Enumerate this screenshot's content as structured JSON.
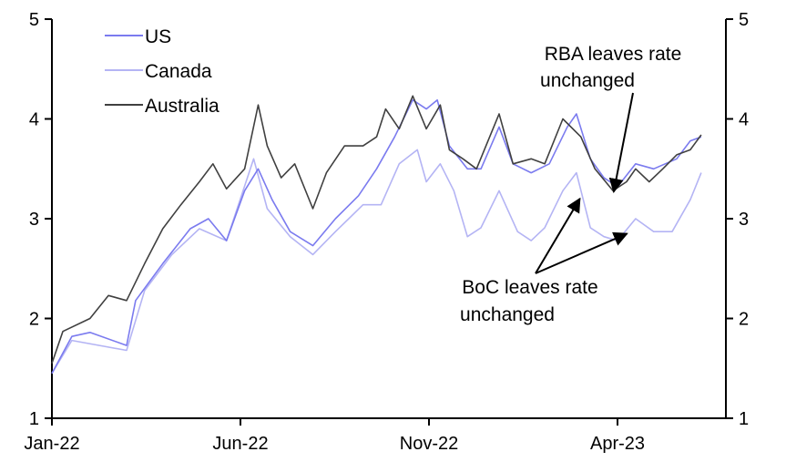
{
  "chart_data": {
    "type": "line",
    "title": "",
    "xlabel": "",
    "ylabel": "",
    "x_unit": "months since Jan-22",
    "xlim": [
      0,
      18.5
    ],
    "ylim": [
      1,
      5
    ],
    "yticks": [
      1,
      2,
      3,
      4,
      5
    ],
    "xticks": [
      {
        "pos": 0,
        "label": "Jan-22"
      },
      {
        "pos": 5,
        "label": "Jun-22"
      },
      {
        "pos": 10,
        "label": "Nov-22"
      },
      {
        "pos": 15,
        "label": "Apr-23"
      }
    ],
    "grid": false,
    "legend_position": "top-left",
    "series": [
      {
        "name": "US",
        "color": "#7b7bef",
        "x": [
          0,
          0.53,
          1.01,
          1.98,
          2.22,
          2.94,
          3.67,
          4.15,
          4.63,
          5.11,
          5.47,
          5.84,
          6.32,
          6.92,
          7.52,
          8.13,
          8.61,
          9.09,
          9.57,
          9.93,
          10.22,
          10.54,
          11.02,
          11.38,
          11.86,
          12.23,
          12.71,
          13.19,
          13.67,
          13.91,
          14.28,
          14.64,
          15.0,
          15.48,
          15.96,
          16.57,
          16.93,
          17.22
        ],
        "y": [
          1.45,
          1.82,
          1.86,
          1.73,
          2.18,
          2.55,
          2.9,
          3.0,
          2.78,
          3.28,
          3.5,
          3.19,
          2.87,
          2.73,
          3.0,
          3.23,
          3.5,
          3.82,
          4.19,
          4.1,
          4.19,
          3.73,
          3.5,
          3.5,
          3.92,
          3.55,
          3.46,
          3.55,
          3.92,
          4.05,
          3.6,
          3.41,
          3.32,
          3.55,
          3.5,
          3.6,
          3.78,
          3.82
        ]
      },
      {
        "name": "Canada",
        "color": "#b4b4f4",
        "x": [
          0,
          0.53,
          1.98,
          2.46,
          3.18,
          3.91,
          4.63,
          4.99,
          5.35,
          5.71,
          6.32,
          6.92,
          7.52,
          8.25,
          8.73,
          9.21,
          9.69,
          9.93,
          10.3,
          10.66,
          11.02,
          11.38,
          11.86,
          12.35,
          12.71,
          13.07,
          13.55,
          13.91,
          14.28,
          14.64,
          15.0,
          15.48,
          15.96,
          16.45,
          16.93,
          17.22
        ],
        "y": [
          1.45,
          1.78,
          1.68,
          2.28,
          2.64,
          2.9,
          2.78,
          3.19,
          3.6,
          3.1,
          2.82,
          2.64,
          2.87,
          3.14,
          3.14,
          3.55,
          3.69,
          3.37,
          3.55,
          3.28,
          2.82,
          2.91,
          3.28,
          2.87,
          2.78,
          2.91,
          3.28,
          3.46,
          2.91,
          2.82,
          2.78,
          3.0,
          2.87,
          2.87,
          3.19,
          3.46
        ]
      },
      {
        "name": "Australia",
        "color": "#404040",
        "x": [
          0,
          0.29,
          1.01,
          1.5,
          1.98,
          2.46,
          2.94,
          3.42,
          3.91,
          4.27,
          4.63,
          5.11,
          5.47,
          5.71,
          6.08,
          6.44,
          6.92,
          7.28,
          7.76,
          8.25,
          8.61,
          8.85,
          9.21,
          9.57,
          9.93,
          10.3,
          10.54,
          10.9,
          11.26,
          11.86,
          12.23,
          12.71,
          13.07,
          13.55,
          14.03,
          14.4,
          14.88,
          15.24,
          15.48,
          15.84,
          16.2,
          16.57,
          16.93,
          17.22
        ],
        "y": [
          1.55,
          1.87,
          2.0,
          2.23,
          2.18,
          2.55,
          2.9,
          3.14,
          3.37,
          3.55,
          3.3,
          3.5,
          4.14,
          3.73,
          3.41,
          3.55,
          3.1,
          3.46,
          3.73,
          3.73,
          3.82,
          4.1,
          3.9,
          4.23,
          3.9,
          4.14,
          3.69,
          3.6,
          3.5,
          4.05,
          3.55,
          3.6,
          3.55,
          4.0,
          3.82,
          3.5,
          3.28,
          3.37,
          3.5,
          3.37,
          3.5,
          3.64,
          3.69,
          3.84
        ]
      }
    ],
    "annotations": [
      {
        "text_lines": [
          "RBA leaves rate",
          "unchanged"
        ],
        "arrow_targets": [
          {
            "x": 14.9,
            "y": 3.27
          }
        ]
      },
      {
        "text_lines": [
          "BoC leaves rate",
          "unchanged"
        ],
        "arrow_targets": [
          {
            "x": 14.0,
            "y": 3.2
          },
          {
            "x": 15.25,
            "y": 2.85
          }
        ]
      }
    ]
  }
}
